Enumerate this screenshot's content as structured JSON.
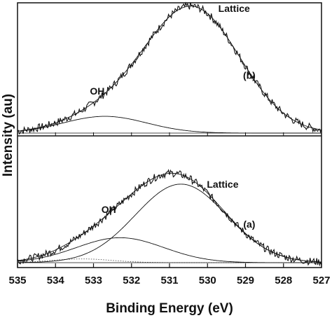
{
  "chart_data": {
    "type": "line",
    "xlabel": "Binding Energy (eV)",
    "ylabel": "Intensity (au)",
    "xlim": [
      535,
      527
    ],
    "x_reversed": true,
    "x_ticks": [
      "535",
      "534",
      "533",
      "532",
      "531",
      "530",
      "529",
      "528",
      "527"
    ],
    "grid": false,
    "panels": [
      {
        "id": "b",
        "label": "(b)",
        "position": "top",
        "components": [
          {
            "label": "OH",
            "center": 532.7,
            "height": 0.13,
            "width": 1.1
          },
          {
            "label": "Lattice",
            "center": 530.4,
            "height": 0.97,
            "width": 1.25
          }
        ],
        "series": [
          {
            "kind": "measured",
            "noise": 0.03,
            "style": "noisy"
          },
          {
            "kind": "envelope",
            "style": "smooth"
          },
          {
            "kind": "component",
            "component": "OH",
            "style": "smooth"
          }
        ]
      },
      {
        "id": "a",
        "label": "(a)",
        "position": "bottom",
        "components": [
          {
            "label": "OH",
            "center": 532.3,
            "height": 0.2,
            "width": 1.15
          },
          {
            "label": "",
            "center": 533.3,
            "height": 0.03,
            "width": 0.8
          },
          {
            "label": "Lattice",
            "center": 530.7,
            "height": 0.63,
            "width": 1.2
          }
        ],
        "series": [
          {
            "kind": "measured",
            "noise": 0.03,
            "style": "noisy"
          },
          {
            "kind": "envelope",
            "style": "smooth"
          },
          {
            "kind": "component",
            "component": "OH",
            "style": "smooth"
          },
          {
            "kind": "component",
            "component": "",
            "style": "dotted"
          },
          {
            "kind": "component",
            "component": "Lattice",
            "style": "smooth"
          }
        ]
      }
    ],
    "annotations": [
      {
        "text": "Lattice",
        "panel": "b",
        "x": 529.3,
        "y": 0.94
      },
      {
        "text": "OH",
        "panel": "b",
        "x": 532.9,
        "y": 0.3
      },
      {
        "text": "(b)",
        "panel": "b",
        "x": 528.9,
        "y": 0.42
      },
      {
        "text": "Lattice",
        "panel": "a",
        "x": 529.6,
        "y": 0.6
      },
      {
        "text": "OH",
        "panel": "a",
        "x": 532.6,
        "y": 0.4
      },
      {
        "text": "(a)",
        "panel": "a",
        "x": 528.9,
        "y": 0.28
      }
    ]
  }
}
